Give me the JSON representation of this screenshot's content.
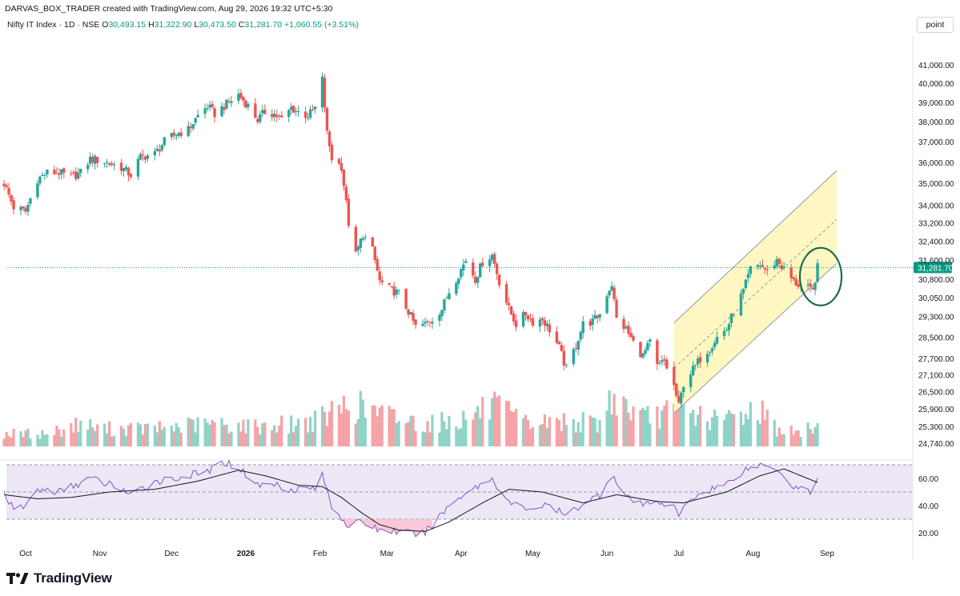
{
  "header": {
    "credit": "DARVAS_BOX_TRADER created with TradingView.com, Aug 29, 2026 19:32 UTC+5:30",
    "symbol": "Nifty IT Index · 1D · NSE",
    "o_label": "O",
    "o_value": "30,493.15",
    "h_label": "H",
    "h_value": "31,322.90",
    "l_label": "L",
    "l_value": "30,473.50",
    "c_label": "C",
    "c_value": "31,281.70",
    "change": "+1,060.55 (+3.51%)",
    "scale_button": "point"
  },
  "footer": {
    "brand": "TradingView"
  },
  "colors": {
    "up": "#26a69a",
    "down": "#ef5350",
    "vol_up": "#8fd3c7",
    "vol_down": "#f5a3a6",
    "channel_fill": "#fff7c2",
    "rsi_band": "#ede7f6",
    "rsi_line": "#7e57c2",
    "rsi_ma": "#131722",
    "last_price_tag": "#089981",
    "annotation": "#1b6b4f"
  },
  "chart_data": {
    "type": "candlestick",
    "symbol": "Nifty IT Index",
    "interval": "1D",
    "exchange": "NSE",
    "last_price": 31281.7,
    "last_price_label": "31,281.70",
    "price_axis": {
      "scale": "log",
      "range": [
        24500,
        42000
      ],
      "ticks": [
        24740,
        25300,
        25900,
        26500,
        27100,
        27700,
        28500,
        29300,
        30050,
        30800,
        31600,
        32400,
        33200,
        34000,
        35000,
        36000,
        37000,
        38000,
        39000,
        40000,
        41000
      ],
      "tick_labels": [
        "24,740.00",
        "25,300.00",
        "25,900.00",
        "26,500.00",
        "27,100.00",
        "27,700.00",
        "28,500.00",
        "29,300.00",
        "30,050.00",
        "30,800.00",
        "31,600.00",
        "32,400.00",
        "33,200.00",
        "34,000.00",
        "35,000.00",
        "36,000.00",
        "37,000.00",
        "38,000.00",
        "39,000.00",
        "40,000.00",
        "41,000.00"
      ]
    },
    "time_axis": {
      "labels": [
        {
          "text": "Oct",
          "date": "2025-10-01",
          "bold": false
        },
        {
          "text": "Nov",
          "date": "2025-11-01",
          "bold": false
        },
        {
          "text": "Dec",
          "date": "2025-12-01",
          "bold": false
        },
        {
          "text": "2026",
          "date": "2026-01-01",
          "bold": true
        },
        {
          "text": "Feb",
          "date": "2026-02-01",
          "bold": false
        },
        {
          "text": "Mar",
          "date": "2026-03-01",
          "bold": false
        },
        {
          "text": "Apr",
          "date": "2026-04-01",
          "bold": false
        },
        {
          "text": "May",
          "date": "2026-05-01",
          "bold": false
        },
        {
          "text": "Jun",
          "date": "2026-06-01",
          "bold": false
        },
        {
          "text": "Jul",
          "date": "2026-07-01",
          "bold": false
        },
        {
          "text": "Aug",
          "date": "2026-08-01",
          "bold": false
        },
        {
          "text": "Sep",
          "date": "2026-09-01",
          "bold": false
        }
      ]
    },
    "close_path": [
      [
        "2025-09-22",
        35000
      ],
      [
        "2025-09-26",
        33900
      ],
      [
        "2025-10-01",
        33700
      ],
      [
        "2025-10-06",
        35200
      ],
      [
        "2025-10-10",
        35500
      ],
      [
        "2025-10-15",
        35500
      ],
      [
        "2025-10-20",
        35300
      ],
      [
        "2025-10-24",
        35500
      ],
      [
        "2025-10-28",
        36150
      ],
      [
        "2025-11-01",
        36100
      ],
      [
        "2025-11-05",
        35950
      ],
      [
        "2025-11-10",
        35750
      ],
      [
        "2025-11-14",
        35400
      ],
      [
        "2025-11-18",
        36250
      ],
      [
        "2025-11-24",
        36400
      ],
      [
        "2025-11-28",
        37000
      ],
      [
        "2025-12-03",
        37400
      ],
      [
        "2025-12-08",
        37600
      ],
      [
        "2025-12-12",
        38300
      ],
      [
        "2025-12-16",
        38800
      ],
      [
        "2025-12-19",
        38400
      ],
      [
        "2025-12-23",
        38800
      ],
      [
        "2025-12-29",
        39400
      ],
      [
        "2026-01-02",
        38800
      ],
      [
        "2026-01-06",
        38100
      ],
      [
        "2026-01-09",
        38500
      ],
      [
        "2026-01-13",
        38400
      ],
      [
        "2026-01-16",
        38100
      ],
      [
        "2026-01-20",
        38700
      ],
      [
        "2026-01-23",
        38500
      ],
      [
        "2026-01-27",
        38300
      ],
      [
        "2026-01-30",
        38700
      ],
      [
        "2026-02-02",
        40200
      ],
      [
        "2026-02-04",
        37400
      ],
      [
        "2026-02-06",
        36200
      ],
      [
        "2026-02-10",
        35800
      ],
      [
        "2026-02-13",
        33200
      ],
      [
        "2026-02-16",
        31800
      ],
      [
        "2026-02-19",
        32700
      ],
      [
        "2026-02-23",
        32000
      ],
      [
        "2026-02-26",
        30700
      ],
      [
        "2026-03-02",
        30400
      ],
      [
        "2026-03-06",
        30200
      ],
      [
        "2026-03-10",
        29500
      ],
      [
        "2026-03-13",
        28900
      ],
      [
        "2026-03-17",
        29000
      ],
      [
        "2026-03-20",
        29200
      ],
      [
        "2026-03-24",
        29600
      ],
      [
        "2026-03-27",
        30300
      ],
      [
        "2026-03-31",
        31000
      ],
      [
        "2026-04-03",
        31600
      ],
      [
        "2026-04-07",
        30800
      ],
      [
        "2026-04-10",
        31500
      ],
      [
        "2026-04-14",
        31800
      ],
      [
        "2026-04-17",
        30700
      ],
      [
        "2026-04-21",
        29600
      ],
      [
        "2026-04-24",
        29000
      ],
      [
        "2026-04-28",
        29400
      ],
      [
        "2026-05-01",
        29100
      ],
      [
        "2026-05-05",
        29200
      ],
      [
        "2026-05-08",
        28800
      ],
      [
        "2026-05-12",
        28100
      ],
      [
        "2026-05-15",
        27300
      ],
      [
        "2026-05-19",
        28200
      ],
      [
        "2026-05-22",
        29000
      ],
      [
        "2026-05-26",
        29100
      ],
      [
        "2026-05-29",
        29400
      ],
      [
        "2026-06-01",
        30200
      ],
      [
        "2026-06-03",
        30600
      ],
      [
        "2026-06-05",
        29200
      ],
      [
        "2026-06-09",
        28800
      ],
      [
        "2026-06-12",
        28300
      ],
      [
        "2026-06-16",
        27800
      ],
      [
        "2026-06-19",
        28300
      ],
      [
        "2026-06-22",
        27400
      ],
      [
        "2026-06-25",
        27600
      ],
      [
        "2026-06-29",
        26700
      ],
      [
        "2026-07-01",
        26000
      ],
      [
        "2026-07-03",
        26800
      ],
      [
        "2026-07-07",
        27300
      ],
      [
        "2026-07-10",
        27700
      ],
      [
        "2026-07-14",
        28100
      ],
      [
        "2026-07-17",
        28500
      ],
      [
        "2026-07-21",
        28800
      ],
      [
        "2026-07-24",
        29500
      ],
      [
        "2026-07-28",
        30300
      ],
      [
        "2026-07-31",
        31200
      ],
      [
        "2026-08-04",
        31400
      ],
      [
        "2026-08-07",
        31100
      ],
      [
        "2026-08-11",
        31600
      ],
      [
        "2026-08-14",
        31200
      ],
      [
        "2026-08-18",
        30700
      ],
      [
        "2026-08-21",
        30500
      ],
      [
        "2026-08-24",
        30400
      ],
      [
        "2026-08-26",
        30300
      ],
      [
        "2026-08-28",
        31281.7
      ]
    ],
    "volume": {
      "shape": [
        [
          "2025-09-22",
          0.25
        ],
        [
          "2025-10-10",
          0.25
        ],
        [
          "2025-10-24",
          0.45
        ],
        [
          "2025-11-01",
          0.35
        ],
        [
          "2025-11-24",
          0.35
        ],
        [
          "2025-12-16",
          0.45
        ],
        [
          "2026-01-02",
          0.4
        ],
        [
          "2026-01-23",
          0.45
        ],
        [
          "2026-02-02",
          0.55
        ],
        [
          "2026-02-13",
          0.85
        ],
        [
          "2026-03-02",
          0.6
        ],
        [
          "2026-03-17",
          0.45
        ],
        [
          "2026-04-03",
          0.55
        ],
        [
          "2026-04-14",
          0.8
        ],
        [
          "2026-04-28",
          0.45
        ],
        [
          "2026-05-15",
          0.5
        ],
        [
          "2026-05-29",
          0.45
        ],
        [
          "2026-06-03",
          1.0
        ],
        [
          "2026-06-16",
          0.55
        ],
        [
          "2026-06-29",
          0.7
        ],
        [
          "2026-07-01",
          0.75
        ],
        [
          "2026-07-17",
          0.5
        ],
        [
          "2026-08-04",
          0.75
        ],
        [
          "2026-08-11",
          0.35
        ],
        [
          "2026-08-21",
          0.25
        ],
        [
          "2026-08-28",
          0.45
        ]
      ]
    },
    "rsi": {
      "type": "line",
      "ylim": [
        15,
        78
      ],
      "ticks": [
        20,
        40,
        60
      ],
      "tick_labels": [
        "20.00",
        "40.00",
        "60.00"
      ],
      "upper_band": 70,
      "mid_band": 50,
      "lower_band": 30,
      "rsi_path": [
        [
          "2025-09-22",
          50
        ],
        [
          "2025-09-26",
          36
        ],
        [
          "2025-10-01",
          40
        ],
        [
          "2025-10-06",
          52
        ],
        [
          "2025-10-15",
          50
        ],
        [
          "2025-10-28",
          60
        ],
        [
          "2025-11-10",
          53
        ],
        [
          "2025-11-14",
          47
        ],
        [
          "2025-11-24",
          58
        ],
        [
          "2025-12-03",
          60
        ],
        [
          "2025-12-16",
          65
        ],
        [
          "2025-12-23",
          72
        ],
        [
          "2025-12-29",
          68
        ],
        [
          "2026-01-06",
          55
        ],
        [
          "2026-01-13",
          56
        ],
        [
          "2026-01-20",
          52
        ],
        [
          "2026-01-30",
          53
        ],
        [
          "2026-02-02",
          62
        ],
        [
          "2026-02-06",
          40
        ],
        [
          "2026-02-13",
          25
        ],
        [
          "2026-02-19",
          28
        ],
        [
          "2026-02-26",
          22
        ],
        [
          "2026-03-06",
          21
        ],
        [
          "2026-03-13",
          19
        ],
        [
          "2026-03-17",
          20
        ],
        [
          "2026-03-27",
          40
        ],
        [
          "2026-04-03",
          50
        ],
        [
          "2026-04-14",
          60
        ],
        [
          "2026-04-21",
          42
        ],
        [
          "2026-04-28",
          38
        ],
        [
          "2026-05-08",
          40
        ],
        [
          "2026-05-15",
          32
        ],
        [
          "2026-05-22",
          42
        ],
        [
          "2026-05-29",
          48
        ],
        [
          "2026-06-03",
          63
        ],
        [
          "2026-06-09",
          46
        ],
        [
          "2026-06-16",
          40
        ],
        [
          "2026-06-22",
          44
        ],
        [
          "2026-06-29",
          38
        ],
        [
          "2026-07-01",
          33
        ],
        [
          "2026-07-07",
          46
        ],
        [
          "2026-07-14",
          52
        ],
        [
          "2026-07-21",
          56
        ],
        [
          "2026-07-28",
          66
        ],
        [
          "2026-08-04",
          70
        ],
        [
          "2026-08-11",
          68
        ],
        [
          "2026-08-18",
          54
        ],
        [
          "2026-08-24",
          52
        ],
        [
          "2026-08-26",
          50
        ],
        [
          "2026-08-28",
          59
        ]
      ],
      "ma_path": [
        [
          "2025-09-22",
          48
        ],
        [
          "2025-10-06",
          45
        ],
        [
          "2025-10-20",
          46
        ],
        [
          "2025-11-05",
          50
        ],
        [
          "2025-11-24",
          52
        ],
        [
          "2025-12-12",
          58
        ],
        [
          "2025-12-29",
          66
        ],
        [
          "2026-01-09",
          62
        ],
        [
          "2026-01-23",
          55
        ],
        [
          "2026-02-02",
          54
        ],
        [
          "2026-02-10",
          46
        ],
        [
          "2026-02-19",
          34
        ],
        [
          "2026-02-26",
          26
        ],
        [
          "2026-03-06",
          22
        ],
        [
          "2026-03-17",
          21
        ],
        [
          "2026-03-27",
          28
        ],
        [
          "2026-04-10",
          42
        ],
        [
          "2026-04-21",
          52
        ],
        [
          "2026-05-05",
          50
        ],
        [
          "2026-05-22",
          42
        ],
        [
          "2026-06-05",
          48
        ],
        [
          "2026-06-22",
          43
        ],
        [
          "2026-07-03",
          42
        ],
        [
          "2026-07-21",
          50
        ],
        [
          "2026-08-04",
          62
        ],
        [
          "2026-08-14",
          67
        ],
        [
          "2026-08-28",
          57
        ]
      ]
    },
    "annotations": [
      {
        "type": "parallel_channel",
        "date_from": "2026-06-29",
        "date_to": "2026-09-05",
        "lower_from": 25750,
        "lower_to": 31450,
        "upper_from": 29050,
        "upper_to": 35600,
        "mid_from": 27350,
        "mid_to": 33350
      },
      {
        "type": "ellipse",
        "date": "2026-08-27",
        "price": 30900
      }
    ]
  }
}
